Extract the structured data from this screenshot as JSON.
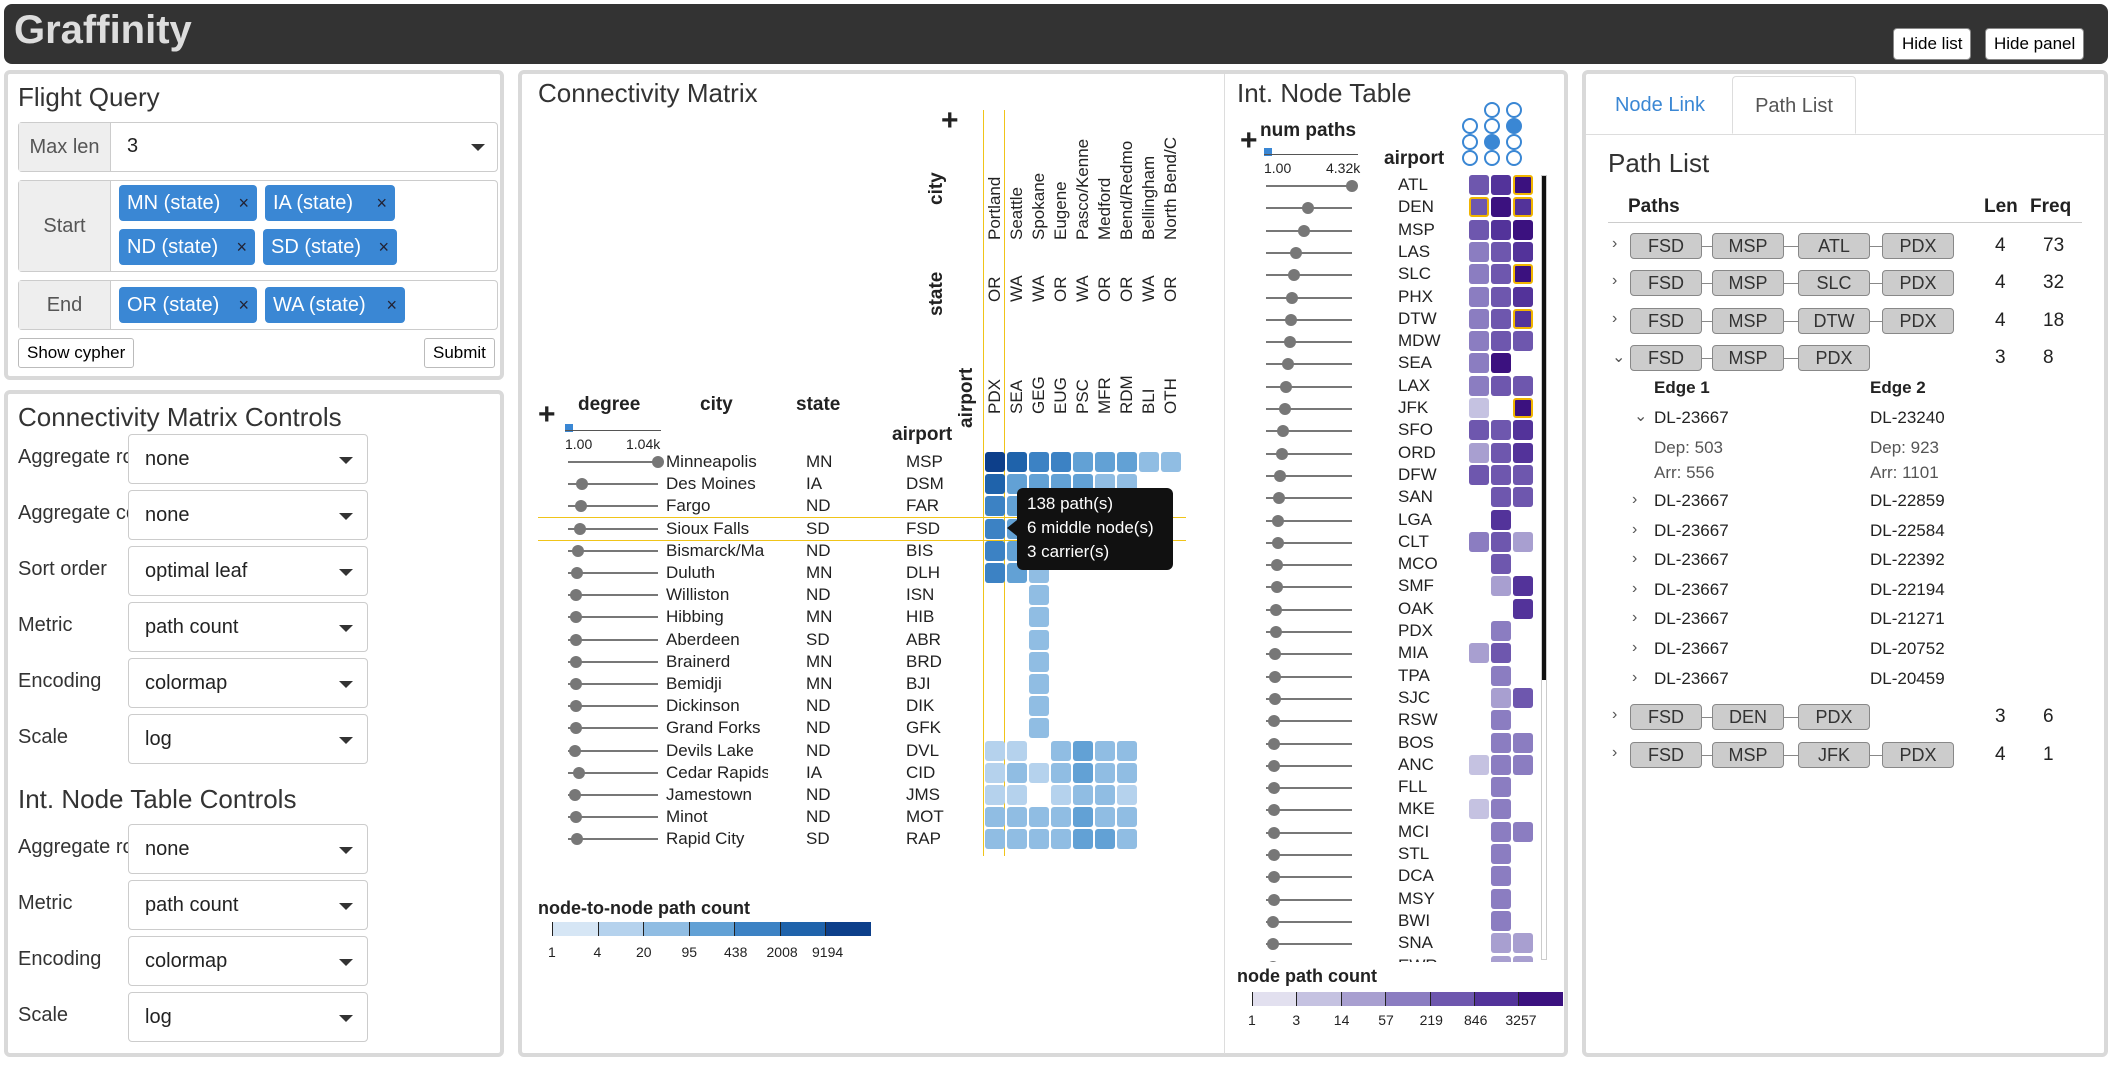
{
  "app": {
    "title": "Graffinity",
    "hide_list": "Hide list",
    "hide_panel": "Hide panel"
  },
  "flight_query": {
    "title": "Flight Query",
    "max_len_label": "Max len",
    "max_len_value": "3",
    "start_label": "Start",
    "start_tags": [
      "MN (state)",
      "IA (state)",
      "ND (state)",
      "SD (state)"
    ],
    "end_label": "End",
    "end_tags": [
      "OR (state)",
      "WA (state)"
    ],
    "tag_remove": "×",
    "show_cypher": "Show cypher",
    "submit": "Submit"
  },
  "cm_controls": {
    "title": "Connectivity Matrix Controls",
    "rows": [
      {
        "label": "Aggregate rows",
        "value": "none"
      },
      {
        "label": "Aggregate cols",
        "value": "none"
      },
      {
        "label": "Sort order",
        "value": "optimal leaf"
      },
      {
        "label": "Metric",
        "value": "path count"
      },
      {
        "label": "Encoding",
        "value": "colormap"
      },
      {
        "label": "Scale",
        "value": "log"
      }
    ]
  },
  "int_controls": {
    "title": "Int. Node Table Controls",
    "rows": [
      {
        "label": "Aggregate rows",
        "value": "none"
      },
      {
        "label": "Metric",
        "value": "path count"
      },
      {
        "label": "Encoding",
        "value": "colormap"
      },
      {
        "label": "Scale",
        "value": "log"
      }
    ]
  },
  "matrix": {
    "title": "Connectivity Matrix",
    "plus": "+",
    "row_headers": {
      "degree": "degree",
      "city": "city",
      "state": "state",
      "airport": "airport"
    },
    "degree_min": "1.00",
    "degree_max": "1.04k",
    "col_headers": {
      "city": "city",
      "state": "state",
      "airport": "airport"
    },
    "columns": [
      {
        "city": "Portland",
        "state": "OR",
        "airport": "PDX"
      },
      {
        "city": "Seattle",
        "state": "WA",
        "airport": "SEA"
      },
      {
        "city": "Spokane",
        "state": "WA",
        "airport": "GEG"
      },
      {
        "city": "Eugene",
        "state": "OR",
        "airport": "EUG"
      },
      {
        "city": "Pasco/Kenne",
        "state": "WA",
        "airport": "PSC"
      },
      {
        "city": "Medford",
        "state": "OR",
        "airport": "MFR"
      },
      {
        "city": "Bend/Redmo",
        "state": "OR",
        "airport": "RDM"
      },
      {
        "city": "Bellingham",
        "state": "WA",
        "airport": "BLI"
      },
      {
        "city": "North Bend/C",
        "state": "OR",
        "airport": "OTH"
      }
    ],
    "rows": [
      {
        "city": "Minneapolis",
        "state": "MN",
        "airport": "MSP",
        "deg": 1.0
      },
      {
        "city": "Des Moines",
        "state": "IA",
        "airport": "DSM",
        "deg": 0.1
      },
      {
        "city": "Fargo",
        "state": "ND",
        "airport": "FAR",
        "deg": 0.08
      },
      {
        "city": "Sioux Falls",
        "state": "SD",
        "airport": "FSD",
        "deg": 0.07
      },
      {
        "city": "Bismarck/Ma",
        "state": "ND",
        "airport": "BIS",
        "deg": 0.05
      },
      {
        "city": "Duluth",
        "state": "MN",
        "airport": "DLH",
        "deg": 0.04
      },
      {
        "city": "Williston",
        "state": "ND",
        "airport": "ISN",
        "deg": 0.02
      },
      {
        "city": "Hibbing",
        "state": "MN",
        "airport": "HIB",
        "deg": 0.02
      },
      {
        "city": "Aberdeen",
        "state": "SD",
        "airport": "ABR",
        "deg": 0.02
      },
      {
        "city": "Brainerd",
        "state": "MN",
        "airport": "BRD",
        "deg": 0.02
      },
      {
        "city": "Bemidji",
        "state": "MN",
        "airport": "BJI",
        "deg": 0.02
      },
      {
        "city": "Dickinson",
        "state": "ND",
        "airport": "DIK",
        "deg": 0.02
      },
      {
        "city": "Grand Forks",
        "state": "ND",
        "airport": "GFK",
        "deg": 0.02
      },
      {
        "city": "Devils Lake",
        "state": "ND",
        "airport": "DVL",
        "deg": 0.01
      },
      {
        "city": "Cedar Rapids",
        "state": "IA",
        "airport": "CID",
        "deg": 0.06
      },
      {
        "city": "Jamestown",
        "state": "ND",
        "airport": "JMS",
        "deg": 0.01
      },
      {
        "city": "Minot",
        "state": "ND",
        "airport": "MOT",
        "deg": 0.02
      },
      {
        "city": "Rapid City",
        "state": "SD",
        "airport": "RAP",
        "deg": 0.03
      }
    ],
    "cells": [
      [
        6,
        5,
        4,
        4,
        3,
        3,
        3,
        2,
        2
      ],
      [
        5,
        3,
        3,
        3,
        3,
        2,
        2,
        0,
        0
      ],
      [
        4,
        3,
        3,
        2,
        2,
        0,
        0,
        0,
        0
      ],
      [
        4,
        3,
        3,
        2,
        2,
        0,
        0,
        0,
        0
      ],
      [
        4,
        3,
        2,
        2,
        0,
        0,
        0,
        0,
        0
      ],
      [
        4,
        3,
        2,
        0,
        0,
        0,
        0,
        0,
        0
      ],
      [
        0,
        0,
        2,
        0,
        0,
        0,
        0,
        0,
        0
      ],
      [
        0,
        0,
        2,
        0,
        0,
        0,
        0,
        0,
        0
      ],
      [
        0,
        0,
        2,
        0,
        0,
        0,
        0,
        0,
        0
      ],
      [
        0,
        0,
        2,
        0,
        0,
        0,
        0,
        0,
        0
      ],
      [
        0,
        0,
        2,
        0,
        0,
        0,
        0,
        0,
        0
      ],
      [
        0,
        0,
        2,
        0,
        0,
        0,
        0,
        0,
        0
      ],
      [
        0,
        0,
        2,
        0,
        0,
        0,
        0,
        0,
        0
      ],
      [
        1,
        1,
        0,
        2,
        3,
        2,
        2,
        0,
        0
      ],
      [
        1,
        2,
        1,
        2,
        3,
        2,
        2,
        0,
        0
      ],
      [
        1,
        1,
        0,
        1,
        2,
        2,
        1,
        0,
        0
      ],
      [
        2,
        2,
        2,
        2,
        3,
        2,
        2,
        0,
        0
      ],
      [
        2,
        2,
        2,
        2,
        3,
        3,
        2,
        0,
        0
      ]
    ],
    "tooltip": [
      "138 path(s)",
      "6 middle node(s)",
      "3 carrier(s)"
    ],
    "legend_title": "node-to-node path count",
    "legend_ticks": [
      "1",
      "4",
      "20",
      "95",
      "438",
      "2008",
      "9194"
    ],
    "legend_colors": [
      "#d6e6f5",
      "#b5d2ed",
      "#90bde3",
      "#62a1d5",
      "#3c82c4",
      "#1f63ab",
      "#0d3f8a"
    ]
  },
  "int_table": {
    "title": "Int. Node Table",
    "plus": "+",
    "num_paths": "num paths",
    "np_min": "1.00",
    "np_max": "4.32k",
    "airport_header": "airport",
    "airports": [
      "ATL",
      "DEN",
      "MSP",
      "LAS",
      "SLC",
      "PHX",
      "DTW",
      "MDW",
      "SEA",
      "LAX",
      "JFK",
      "SFO",
      "ORD",
      "DFW",
      "SAN",
      "LGA",
      "CLT",
      "MCO",
      "SMF",
      "OAK",
      "PDX",
      "MIA",
      "TPA",
      "SJC",
      "RSW",
      "BOS",
      "ANC",
      "FLL",
      "MKE",
      "MCI",
      "STL",
      "DCA",
      "MSY",
      "BWI",
      "SNA",
      "EWR"
    ],
    "np_values": [
      1.0,
      0.45,
      0.4,
      0.3,
      0.28,
      0.25,
      0.24,
      0.22,
      0.2,
      0.18,
      0.16,
      0.14,
      0.12,
      0.1,
      0.09,
      0.08,
      0.07,
      0.06,
      0.06,
      0.05,
      0.05,
      0.04,
      0.04,
      0.04,
      0.03,
      0.03,
      0.03,
      0.03,
      0.02,
      0.02,
      0.02,
      0.02,
      0.02,
      0.01,
      0.01,
      0.01
    ],
    "cells": [
      [
        4,
        5,
        6
      ],
      [
        4,
        6,
        5
      ],
      [
        4,
        5,
        6
      ],
      [
        3,
        4,
        5
      ],
      [
        3,
        4,
        6
      ],
      [
        3,
        4,
        5
      ],
      [
        3,
        4,
        5
      ],
      [
        3,
        4,
        4
      ],
      [
        3,
        6,
        0
      ],
      [
        3,
        4,
        4
      ],
      [
        1,
        0,
        6
      ],
      [
        4,
        4,
        5
      ],
      [
        2,
        4,
        5
      ],
      [
        4,
        4,
        4
      ],
      [
        0,
        4,
        4
      ],
      [
        0,
        5,
        0
      ],
      [
        3,
        4,
        2
      ],
      [
        0,
        4,
        0
      ],
      [
        0,
        2,
        5
      ],
      [
        0,
        0,
        5
      ],
      [
        0,
        3,
        0
      ],
      [
        2,
        4,
        0
      ],
      [
        0,
        3,
        0
      ],
      [
        0,
        2,
        4
      ],
      [
        0,
        3,
        0
      ],
      [
        0,
        3,
        3
      ],
      [
        1,
        3,
        3
      ],
      [
        0,
        3,
        0
      ],
      [
        1,
        3,
        0
      ],
      [
        0,
        3,
        3
      ],
      [
        0,
        3,
        0
      ],
      [
        0,
        3,
        0
      ],
      [
        0,
        3,
        0
      ],
      [
        0,
        3,
        0
      ],
      [
        0,
        2,
        2
      ],
      [
        0,
        2,
        2
      ]
    ],
    "highlight": [
      [
        0,
        2
      ],
      [
        1,
        0
      ],
      [
        1,
        2
      ],
      [
        4,
        2
      ],
      [
        6,
        2
      ],
      [
        10,
        2
      ]
    ],
    "legend_title": "node path count",
    "legend_ticks": [
      "1",
      "3",
      "14",
      "57",
      "219",
      "846",
      "3257"
    ],
    "legend_colors": [
      "#e2e0ef",
      "#c5c2e1",
      "#a89fd0",
      "#8b7dc1",
      "#6e57ae",
      "#53339a",
      "#3b117f"
    ]
  },
  "path_list": {
    "tab_node_link": "Node Link",
    "tab_path_list": "Path List",
    "title": "Path List",
    "col_paths": "Paths",
    "col_len": "Len",
    "col_freq": "Freq",
    "paths": [
      {
        "nodes": [
          "FSD",
          "MSP",
          "ATL",
          "PDX"
        ],
        "len": "4",
        "freq": "73"
      },
      {
        "nodes": [
          "FSD",
          "MSP",
          "SLC",
          "PDX"
        ],
        "len": "4",
        "freq": "32"
      },
      {
        "nodes": [
          "FSD",
          "MSP",
          "DTW",
          "PDX"
        ],
        "len": "4",
        "freq": "18"
      },
      {
        "nodes": [
          "FSD",
          "MSP",
          "PDX"
        ],
        "len": "3",
        "freq": "8"
      }
    ],
    "paths_after": [
      {
        "nodes": [
          "FSD",
          "DEN",
          "PDX"
        ],
        "len": "3",
        "freq": "6"
      },
      {
        "nodes": [
          "FSD",
          "MSP",
          "JFK",
          "PDX"
        ],
        "len": "4",
        "freq": "1"
      }
    ],
    "edge1_label": "Edge 1",
    "edge2_label": "Edge 2",
    "expanded_edge": {
      "e1": "DL-23667",
      "e2": "DL-23240",
      "dep1": "Dep: 503",
      "arr1": "Arr: 556",
      "dep2": "Dep: 923",
      "arr2": "Arr: 1101"
    },
    "edges": [
      [
        "DL-23667",
        "DL-22859"
      ],
      [
        "DL-23667",
        "DL-22584"
      ],
      [
        "DL-23667",
        "DL-22392"
      ],
      [
        "DL-23667",
        "DL-22194"
      ],
      [
        "DL-23667",
        "DL-21271"
      ],
      [
        "DL-23667",
        "DL-20752"
      ],
      [
        "DL-23667",
        "DL-20459"
      ]
    ]
  },
  "icons": {
    "expand": "chevron-right-icon",
    "collapse": "chevron-down-icon",
    "add": "plus-icon",
    "remove": "x-icon"
  }
}
